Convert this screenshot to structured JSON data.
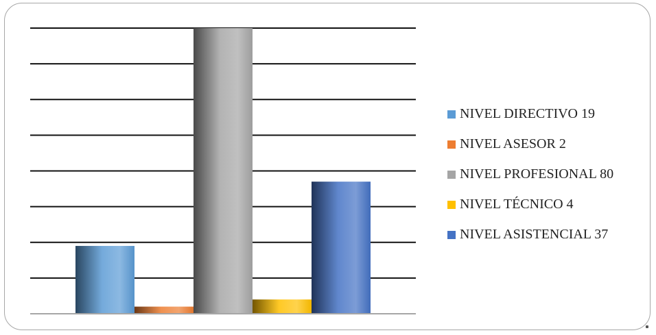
{
  "chart_data": {
    "type": "bar",
    "title": "",
    "xlabel": "",
    "ylabel": "",
    "categories": [
      "NIVEL DIRECTIVO",
      "NIVEL ASESOR",
      "NIVEL PROFESIONAL",
      "NIVEL TÉCNICO",
      "NIVEL ASISTENCIAL"
    ],
    "values": [
      19,
      2,
      80,
      4,
      37
    ],
    "ylim": [
      0,
      80
    ],
    "grid": true,
    "legend_position": "right",
    "colors": [
      "#5b9bd5",
      "#ed7d31",
      "#a5a5a5",
      "#ffc000",
      "#4472c4"
    ],
    "legend": [
      {
        "label": "NIVEL DIRECTIVO 19",
        "color": "#5b9bd5"
      },
      {
        "label": "NIVEL ASESOR 2",
        "color": "#ed7d31"
      },
      {
        "label": "NIVEL PROFESIONAL 80",
        "color": "#a5a5a5"
      },
      {
        "label": "NIVEL TÉCNICO 4",
        "color": "#ffc000"
      },
      {
        "label": "NIVEL ASISTENCIAL 37",
        "color": "#4472c4"
      }
    ]
  }
}
